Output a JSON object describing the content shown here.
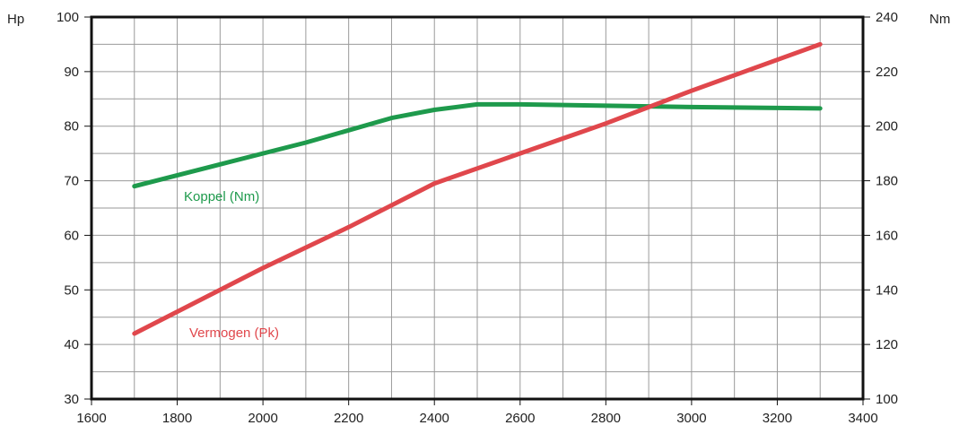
{
  "chart_data": {
    "type": "line",
    "title": "",
    "xlabel": "",
    "xlim": [
      1600,
      3400
    ],
    "x_ticks": [
      1600,
      1800,
      2000,
      2200,
      2400,
      2600,
      2800,
      3000,
      3200,
      3400
    ],
    "y_left": {
      "label": "Hp",
      "ylim": [
        30,
        100
      ],
      "ticks": [
        30,
        40,
        50,
        60,
        70,
        80,
        90,
        100
      ]
    },
    "y_right": {
      "label": "Nm",
      "ylim": [
        100,
        240
      ],
      "ticks": [
        100,
        120,
        140,
        160,
        180,
        200,
        220,
        240
      ]
    },
    "grid": true,
    "series": [
      {
        "name": "Koppel (Nm)",
        "axis": "right",
        "color": "#1e9a4c",
        "x": [
          1700,
          1900,
          2100,
          2300,
          2400,
          2500,
          2600,
          2800,
          3000,
          3300
        ],
        "y": [
          178,
          186,
          194,
          203,
          206,
          208,
          208,
          207.5,
          207,
          206.5
        ]
      },
      {
        "name": "Vermogen (Pk)",
        "axis": "left",
        "color": "#e0474c",
        "x": [
          1700,
          2000,
          2200,
          2400,
          2600,
          2800,
          3000,
          3300
        ],
        "y": [
          42,
          54,
          61.5,
          69.5,
          75,
          80.5,
          86.5,
          95
        ]
      }
    ]
  }
}
